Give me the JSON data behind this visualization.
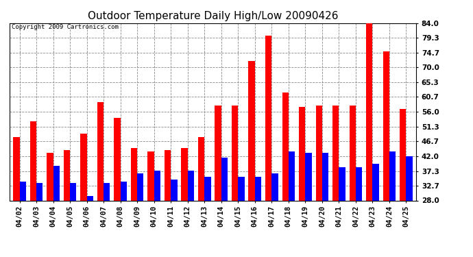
{
  "title": "Outdoor Temperature Daily High/Low 20090426",
  "copyright": "Copyright 2009 Cartronics.com",
  "dates": [
    "04/02",
    "04/03",
    "04/04",
    "04/05",
    "04/06",
    "04/07",
    "04/08",
    "04/09",
    "04/10",
    "04/11",
    "04/12",
    "04/13",
    "04/14",
    "04/15",
    "04/16",
    "04/17",
    "04/18",
    "04/19",
    "04/20",
    "04/21",
    "04/22",
    "04/23",
    "04/24",
    "04/25"
  ],
  "highs": [
    48.0,
    53.0,
    43.0,
    44.0,
    49.0,
    59.0,
    54.0,
    44.5,
    43.5,
    44.0,
    44.5,
    48.0,
    58.0,
    58.0,
    72.0,
    80.0,
    62.0,
    57.5,
    58.0,
    58.0,
    58.0,
    84.0,
    75.0,
    57.0
  ],
  "lows": [
    34.0,
    33.5,
    39.0,
    33.5,
    29.5,
    33.5,
    34.0,
    36.5,
    37.5,
    34.5,
    37.5,
    35.5,
    41.5,
    35.5,
    35.5,
    36.5,
    43.5,
    43.0,
    43.0,
    38.5,
    38.5,
    39.5,
    43.5,
    42.0
  ],
  "high_color": "#ff0000",
  "low_color": "#0000ff",
  "bg_color": "#ffffff",
  "grid_color": "#888888",
  "ymin": 28.0,
  "ymax": 84.0,
  "yticks": [
    28.0,
    32.7,
    37.3,
    42.0,
    46.7,
    51.3,
    56.0,
    60.7,
    65.3,
    70.0,
    74.7,
    79.3,
    84.0
  ],
  "bar_width": 0.38,
  "title_fontsize": 11,
  "tick_fontsize": 7.5,
  "copyright_fontsize": 6.5
}
